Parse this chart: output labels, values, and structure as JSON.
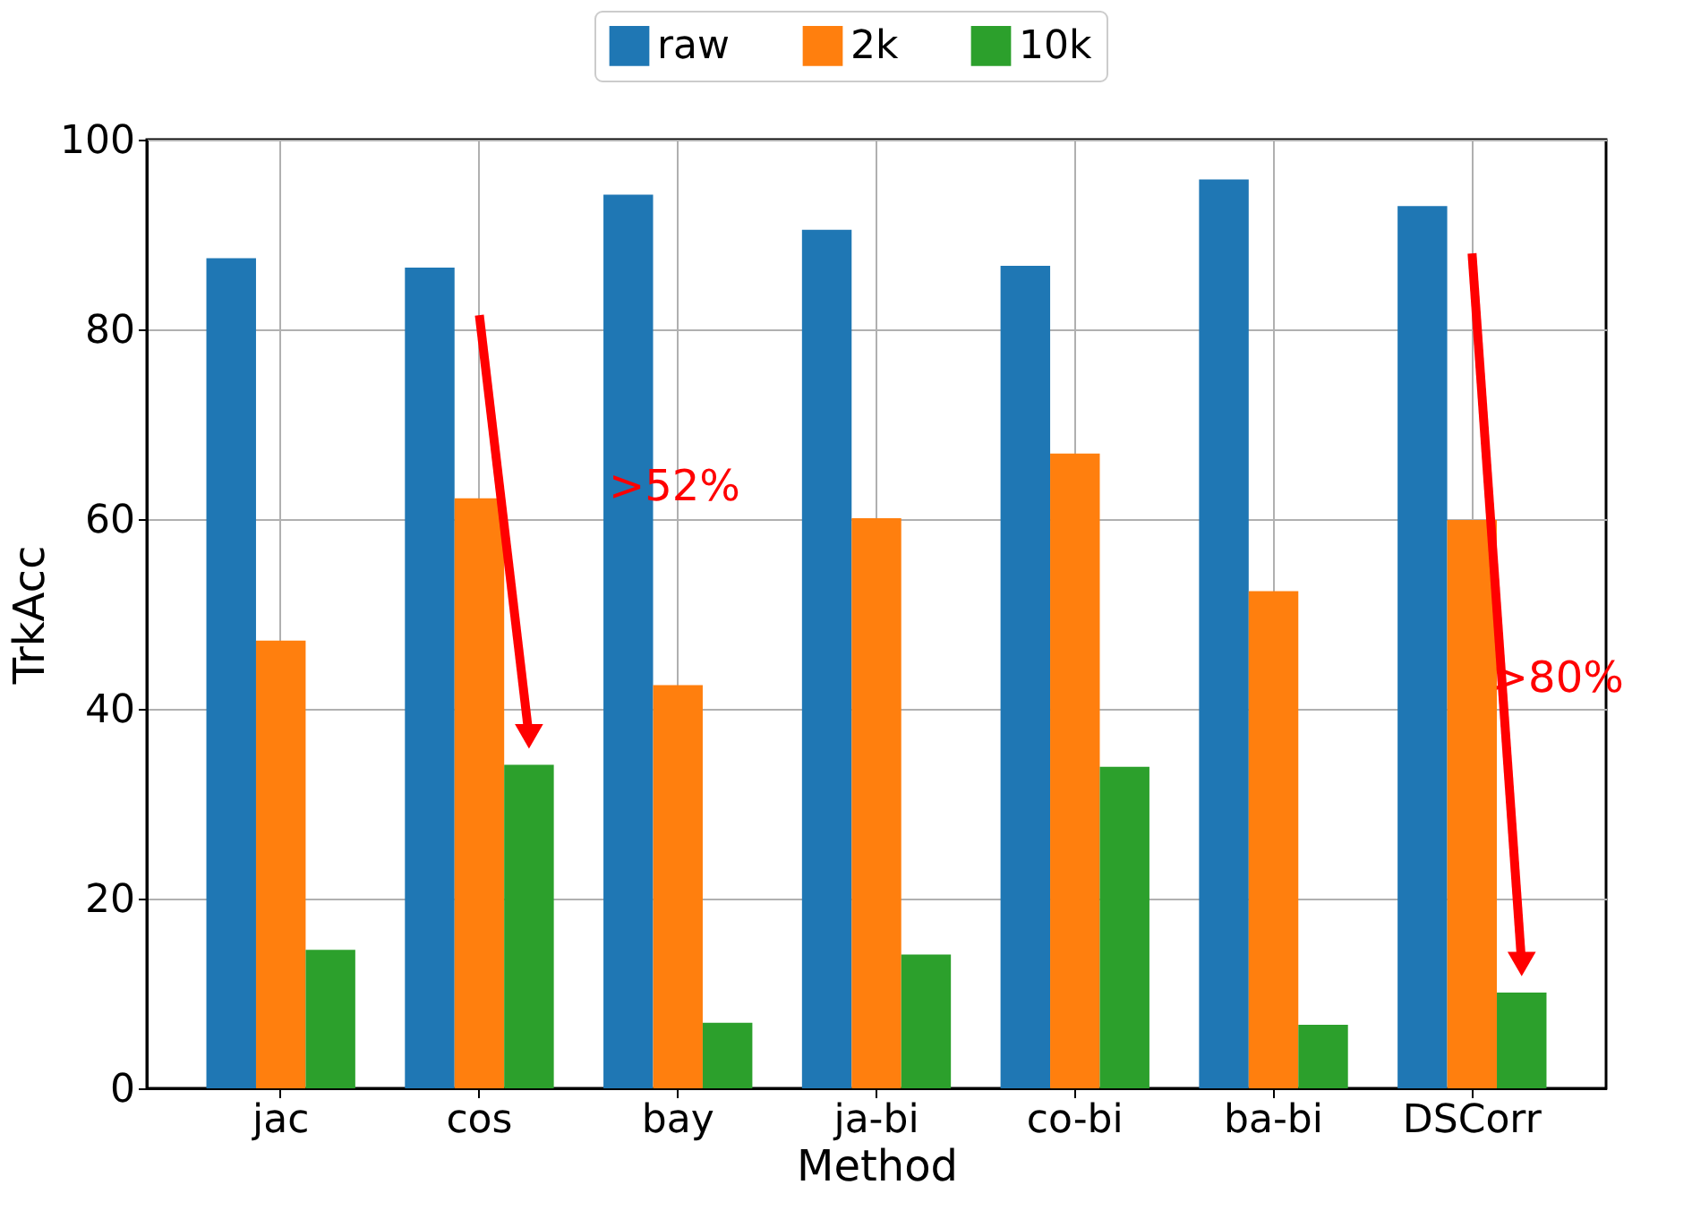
{
  "chart_data": {
    "type": "bar",
    "xlabel": "Method",
    "ylabel": "TrkAcc",
    "categories": [
      "jac",
      "cos",
      "bay",
      "ja-bi",
      "co-bi",
      "ba-bi",
      "DSCorr"
    ],
    "series": [
      {
        "name": "raw",
        "color": "#1f77b4",
        "values": [
          87.5,
          86.5,
          94.2,
          90.5,
          86.7,
          95.8,
          93.0
        ]
      },
      {
        "name": "2k",
        "color": "#ff7f0e",
        "values": [
          47.2,
          62.2,
          42.5,
          60.1,
          66.9,
          52.4,
          59.9
        ]
      },
      {
        "name": "10k",
        "color": "#2ca02c",
        "values": [
          14.6,
          34.1,
          6.9,
          14.1,
          33.9,
          6.7,
          10.1
        ]
      }
    ],
    "ylim": [
      0,
      100
    ],
    "yticks": [
      0,
      20,
      40,
      60,
      80,
      100
    ],
    "grid": true,
    "legend": "top",
    "annotations": [
      ">52%",
      ">80%"
    ]
  }
}
